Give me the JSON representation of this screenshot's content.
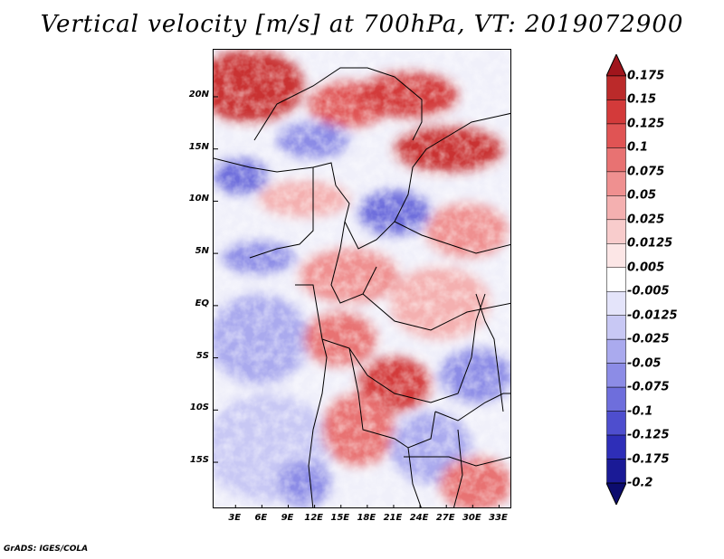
{
  "title": "Vertical velocity [m/s] at 700hPa, VT: 2019072900",
  "footer": "GrADS: IGES/COLA",
  "map": {
    "lat_ticks": [
      "20N",
      "15N",
      "10N",
      "5N",
      "EQ",
      "5S",
      "10S",
      "15S"
    ],
    "lat_values": [
      20,
      15,
      10,
      5,
      0,
      -5,
      -10,
      -15
    ],
    "lon_ticks": [
      "3E",
      "6E",
      "9E",
      "12E",
      "15E",
      "18E",
      "21E",
      "24E",
      "27E",
      "30E",
      "33E"
    ],
    "lon_values": [
      3,
      6,
      9,
      12,
      15,
      18,
      21,
      24,
      27,
      30,
      33
    ],
    "lat_range": [
      -19.5,
      24.5
    ],
    "lon_range": [
      0.5,
      34.5
    ]
  },
  "colorbar": {
    "labels": [
      "0.175",
      "0.15",
      "0.125",
      "0.1",
      "0.075",
      "0.05",
      "0.025",
      "0.0125",
      "0.005",
      "-0.005",
      "-0.0125",
      "-0.025",
      "-0.05",
      "-0.075",
      "-0.1",
      "-0.125",
      "-0.175",
      "-0.2"
    ],
    "colors": [
      "#a0151c",
      "#bb2a2a",
      "#d33a3a",
      "#e05454",
      "#e87272",
      "#ef9090",
      "#f4b0b0",
      "#f8cccc",
      "#fce6e6",
      "#ffffff",
      "#e4e4fa",
      "#c8c8f4",
      "#aaaaee",
      "#8c8ce6",
      "#6e6edc",
      "#4e4ece",
      "#2e2eb8",
      "#1a1a96",
      "#0c0c6e"
    ]
  }
}
